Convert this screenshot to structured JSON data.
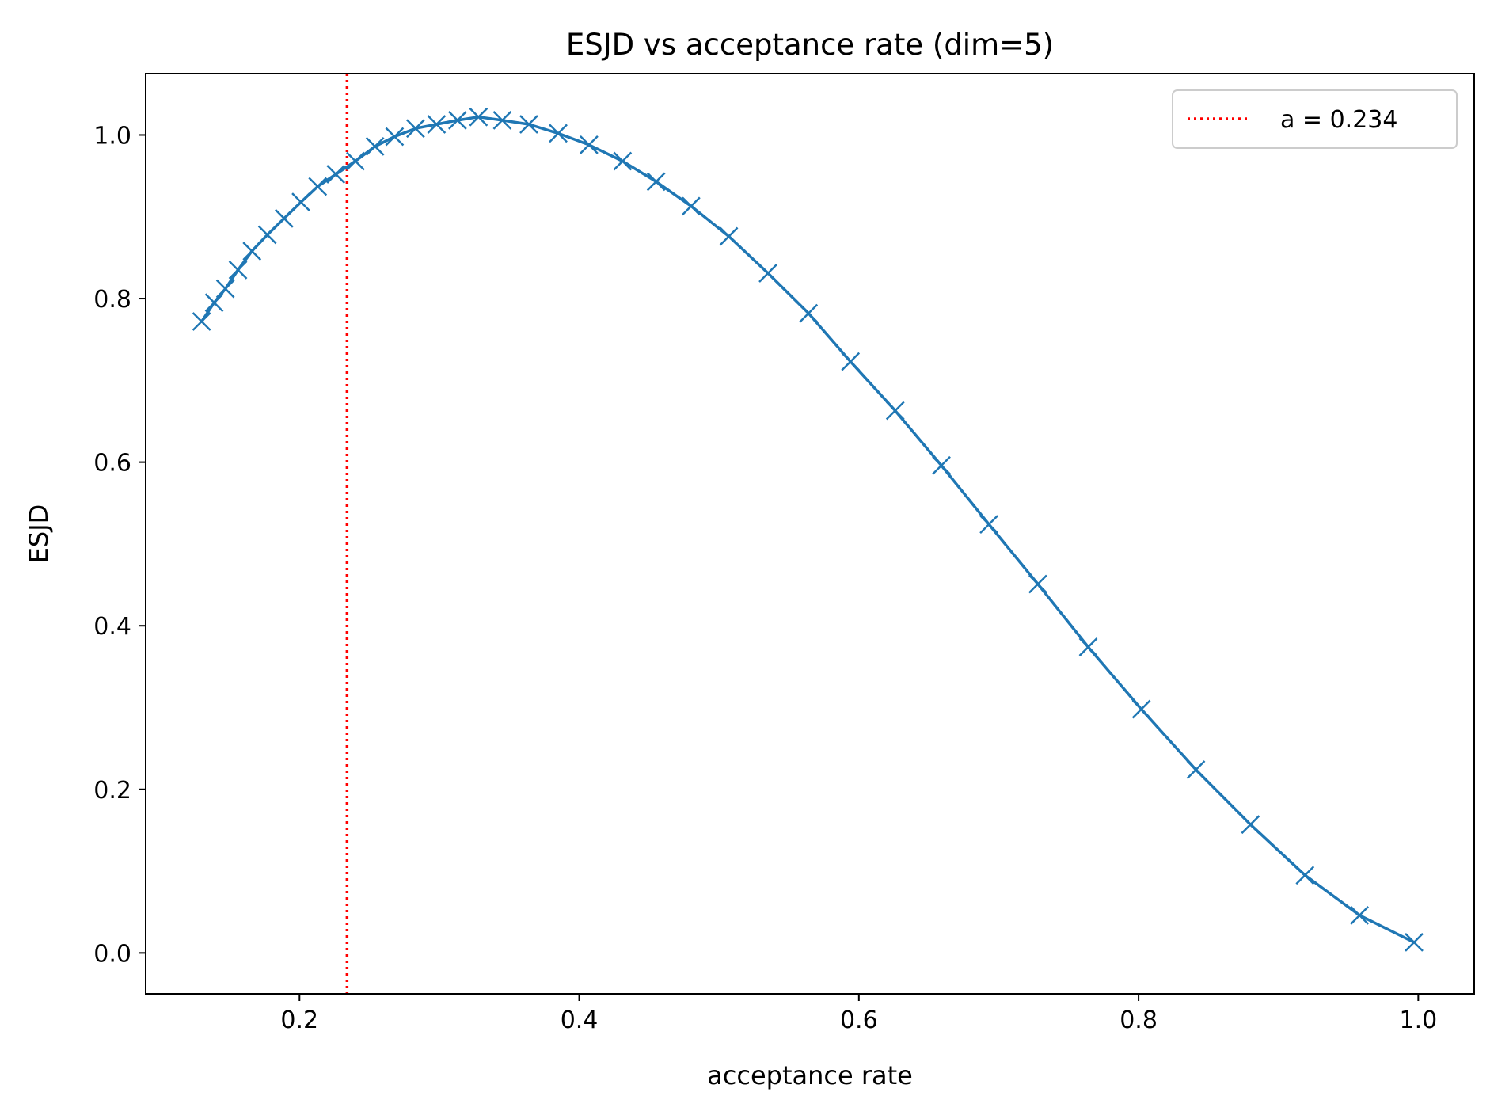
{
  "chart_data": {
    "type": "line",
    "title": "ESJD vs acceptance rate (dim=5)",
    "xlabel": "acceptance rate",
    "ylabel": "ESJD",
    "xlim": [
      0.09,
      1.04
    ],
    "ylim": [
      -0.05,
      1.075
    ],
    "xticks": [
      0.2,
      0.4,
      0.6,
      0.8,
      1.0
    ],
    "xtick_labels": [
      "0.2",
      "0.4",
      "0.6",
      "0.8",
      "1.0"
    ],
    "yticks": [
      0.0,
      0.2,
      0.4,
      0.6,
      0.8,
      1.0
    ],
    "ytick_labels": [
      "0.0",
      "0.2",
      "0.4",
      "0.6",
      "0.8",
      "1.0"
    ],
    "grid": false,
    "legend_position": "top-right",
    "series": [
      {
        "color": "#1f77b4",
        "marker": "x",
        "x": [
          0.13,
          0.139,
          0.147,
          0.156,
          0.166,
          0.177,
          0.189,
          0.201,
          0.213,
          0.226,
          0.24,
          0.254,
          0.268,
          0.283,
          0.298,
          0.313,
          0.328,
          0.345,
          0.364,
          0.385,
          0.407,
          0.431,
          0.455,
          0.48,
          0.507,
          0.535,
          0.564,
          0.594,
          0.626,
          0.659,
          0.693,
          0.728,
          0.764,
          0.802,
          0.841,
          0.88,
          0.919,
          0.958,
          0.997
        ],
        "y": [
          0.772,
          0.795,
          0.812,
          0.835,
          0.858,
          0.878,
          0.898,
          0.918,
          0.937,
          0.952,
          0.968,
          0.986,
          0.998,
          1.008,
          1.013,
          1.018,
          1.022,
          1.018,
          1.013,
          1.002,
          0.988,
          0.968,
          0.943,
          0.913,
          0.876,
          0.831,
          0.782,
          0.723,
          0.663,
          0.596,
          0.524,
          0.451,
          0.374,
          0.298,
          0.224,
          0.157,
          0.095,
          0.046,
          0.013
        ]
      }
    ],
    "vlines": [
      {
        "x": 0.234,
        "color": "#ff0000",
        "style": "dotted",
        "label": "a = 0.234"
      }
    ]
  }
}
